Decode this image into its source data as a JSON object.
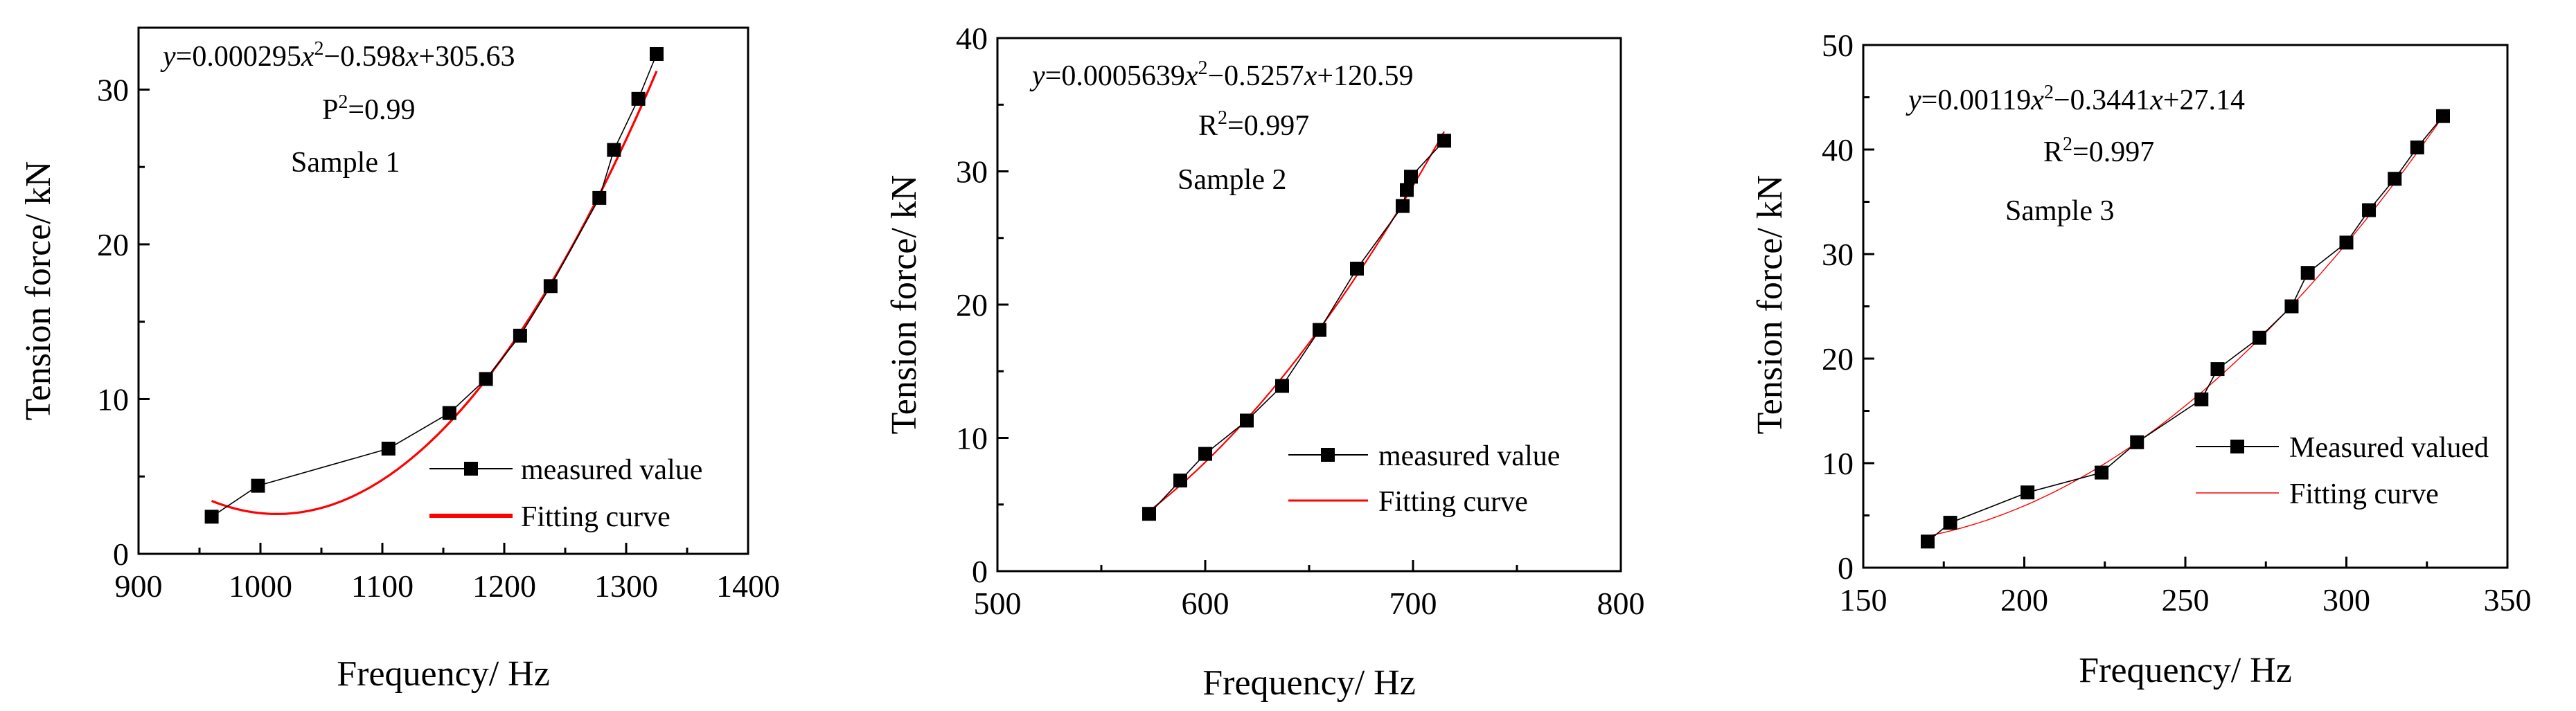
{
  "colors": {
    "measured": "#000000",
    "fit": "#ff0000",
    "axis": "#000000"
  },
  "chart_data": [
    {
      "type": "scatter",
      "title": "",
      "sample_label": "Sample 1",
      "xlabel": "Frequency/ Hz",
      "ylabel": "Tension force/ kN",
      "xlim": [
        900,
        1400
      ],
      "ylim": [
        0,
        34
      ],
      "x_ticks": [
        900,
        1000,
        1100,
        1200,
        1300,
        1400
      ],
      "y_ticks": [
        0,
        10,
        20,
        30
      ],
      "equation": {
        "y": "y",
        "a": "=0.000295",
        "x": "x",
        "sup": "2",
        "b": "−0.598",
        "x2": "x",
        "c": "+305.63"
      },
      "r2": {
        "label": "P",
        "sup": "2",
        "value": "=0.99"
      },
      "legend": {
        "measured": "measured value",
        "fit": "Fitting curve"
      },
      "fit_coefficients": {
        "a": 0.000295,
        "b": -0.598,
        "c": 305.63
      },
      "fit_range": [
        960,
        1325
      ],
      "fit_width": 3.2,
      "series": [
        {
          "name": "measured value",
          "x": [
            960,
            998,
            1105,
            1155,
            1185,
            1213,
            1238,
            1278,
            1290,
            1310,
            1325
          ],
          "y": [
            2.4,
            4.4,
            6.8,
            9.1,
            11.3,
            14.1,
            17.3,
            23.0,
            26.1,
            29.4,
            32.3
          ]
        }
      ]
    },
    {
      "type": "scatter",
      "title": "",
      "sample_label": "Sample 2",
      "xlabel": "Frequency/ Hz",
      "ylabel": "Tension force/ kN",
      "xlim": [
        500,
        800
      ],
      "ylim": [
        0,
        40
      ],
      "x_ticks": [
        500,
        600,
        700,
        800
      ],
      "y_ticks": [
        0,
        10,
        20,
        30,
        40
      ],
      "equation": {
        "y": "y",
        "a": "=0.0005639",
        "x": "x",
        "sup": "2",
        "b": "−0.5257",
        "x2": "x",
        "c": "+120.59"
      },
      "r2": {
        "label": "R",
        "sup": "2",
        "value": "=0.997"
      },
      "legend": {
        "measured": "measured value",
        "fit": "Fitting curve"
      },
      "fit_coefficients": {
        "a": 0.0005639,
        "b": -0.5257,
        "c": 120.59
      },
      "fit_range": [
        573,
        715
      ],
      "fit_width": 2.2,
      "series": [
        {
          "name": "measured value",
          "x": [
            573,
            588,
            600,
            620,
            637,
            655,
            673,
            695,
            697,
            699,
            715
          ],
          "y": [
            4.3,
            6.8,
            8.8,
            11.3,
            13.9,
            18.1,
            22.7,
            27.4,
            28.6,
            29.6,
            32.3
          ]
        }
      ]
    },
    {
      "type": "scatter",
      "title": "",
      "sample_label": "Sample 3",
      "xlabel": "Frequency/ Hz",
      "ylabel": "Tension force/ kN",
      "xlim": [
        150,
        350
      ],
      "ylim": [
        0,
        50
      ],
      "x_ticks": [
        150,
        200,
        250,
        300,
        350
      ],
      "y_ticks": [
        0,
        10,
        20,
        30,
        40,
        50
      ],
      "equation": {
        "y": "y",
        "a": "=0.00119",
        "x": "x",
        "sup": "2",
        "b": "−0.3441",
        "x2": "x",
        "c": "+27.14"
      },
      "r2": {
        "label": "R",
        "sup": "2",
        "value": "=0.997"
      },
      "legend": {
        "measured": "Measured valued",
        "fit": "Fitting curve"
      },
      "fit_coefficients": {
        "a": 0.00119,
        "b": -0.3441,
        "c": 27.14
      },
      "fit_range": [
        170,
        330
      ],
      "fit_width": 1.4,
      "series": [
        {
          "name": "Measured valued",
          "x": [
            170,
            177,
            201,
            224,
            235,
            255,
            260,
            273,
            283,
            288,
            300,
            307,
            315,
            322,
            330
          ],
          "y": [
            2.5,
            4.3,
            7.2,
            9.1,
            12.0,
            16.1,
            19.0,
            22.0,
            25.0,
            28.2,
            31.1,
            34.2,
            37.2,
            40.2,
            43.2
          ]
        }
      ]
    }
  ]
}
